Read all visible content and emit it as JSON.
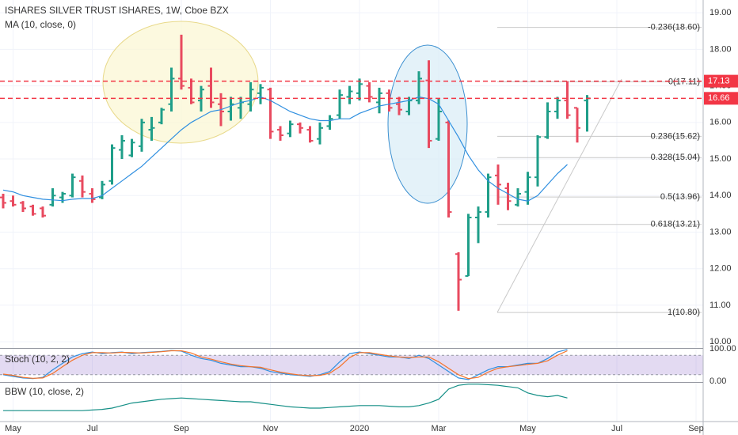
{
  "chart_data": [
    {
      "type": "ohlc",
      "title": "ISHARES SILVER TRUST ISHARES, 1W, Cboe BZX",
      "categories": [
        null,
        "May",
        null,
        null,
        null,
        null,
        null,
        null,
        null,
        "Jul",
        null,
        null,
        null,
        null,
        null,
        null,
        null,
        null,
        "Sep",
        null,
        null,
        null,
        null,
        null,
        null,
        null,
        null,
        "Nov",
        null,
        null,
        null,
        null,
        null,
        null,
        null,
        null,
        "2020",
        null,
        null,
        null,
        null,
        null,
        null,
        null,
        "Mar",
        null,
        null,
        null,
        null,
        null,
        null,
        null,
        null,
        "May",
        null,
        null,
        null,
        null,
        null,
        null,
        null,
        null,
        "Jul",
        null,
        null,
        null,
        null,
        null,
        null,
        null,
        "Sep"
      ],
      "open": [
        13.95,
        13.85,
        13.8,
        13.7,
        13.65,
        13.75,
        13.95,
        14.0,
        14.4,
        14.05,
        13.95,
        14.4,
        15.25,
        15.1,
        15.35,
        15.8,
        16.0,
        16.5,
        17.2,
        16.95,
        16.6,
        17.0,
        16.5,
        16.3,
        16.4,
        16.5,
        16.8,
        16.9,
        15.8,
        15.7,
        15.95,
        15.8,
        15.55,
        15.9,
        16.2,
        16.7,
        16.8,
        17.0,
        16.55,
        16.8,
        16.5,
        16.3,
        16.6,
        17.15,
        15.55,
        16.0,
        12.4,
        11.8,
        13.4,
        13.55,
        14.55,
        14.2,
        13.75,
        14.1,
        14.5,
        15.6,
        16.3,
        16.6,
        16.4,
        16.6,
        null,
        null,
        null,
        null,
        null,
        null,
        null,
        null,
        null,
        null,
        null
      ],
      "high": [
        14.05,
        14.0,
        13.85,
        13.75,
        13.7,
        14.2,
        14.1,
        14.6,
        14.55,
        14.2,
        14.4,
        15.4,
        15.65,
        15.55,
        16.1,
        16.15,
        16.4,
        17.5,
        18.4,
        17.2,
        17.0,
        17.5,
        16.8,
        16.7,
        16.7,
        17.1,
        17.05,
        16.95,
        15.9,
        16.05,
        16.0,
        15.9,
        16.0,
        16.2,
        16.9,
        17.0,
        17.2,
        17.1,
        16.95,
        16.9,
        16.7,
        16.7,
        17.4,
        17.7,
        16.65,
        16.05,
        12.45,
        13.5,
        13.7,
        14.6,
        14.85,
        14.35,
        14.2,
        14.65,
        15.65,
        16.55,
        16.7,
        17.13,
        16.4,
        16.75,
        null,
        null,
        null,
        null,
        null,
        null,
        null,
        null,
        null,
        null,
        null
      ],
      "low": [
        13.65,
        13.7,
        13.55,
        13.45,
        13.4,
        13.7,
        13.8,
        13.95,
        13.95,
        13.8,
        13.9,
        14.3,
        15.0,
        15.05,
        15.2,
        15.5,
        15.95,
        16.3,
        16.9,
        16.5,
        16.3,
        16.4,
        15.9,
        16.05,
        16.1,
        16.3,
        16.5,
        15.55,
        15.5,
        15.6,
        15.7,
        15.45,
        15.4,
        15.8,
        16.1,
        16.5,
        16.6,
        16.55,
        16.25,
        16.3,
        16.2,
        16.2,
        16.5,
        15.3,
        15.5,
        13.4,
        10.85,
        11.8,
        12.7,
        13.4,
        13.75,
        13.6,
        13.7,
        13.75,
        14.25,
        15.55,
        16.1,
        16.1,
        15.45,
        15.75,
        null,
        null,
        null,
        null,
        null,
        null,
        null,
        null,
        null,
        null,
        null
      ],
      "close": [
        13.8,
        13.75,
        13.65,
        13.5,
        13.45,
        14.0,
        14.05,
        14.5,
        14.1,
        13.9,
        14.3,
        15.3,
        15.5,
        15.45,
        16.0,
        15.85,
        16.35,
        17.2,
        17.0,
        16.55,
        16.9,
        16.55,
        16.3,
        16.5,
        16.55,
        16.9,
        16.95,
        15.75,
        15.65,
        15.95,
        15.85,
        15.5,
        15.85,
        16.1,
        16.75,
        16.85,
        17.05,
        16.7,
        16.8,
        16.4,
        16.35,
        16.6,
        17.2,
        15.5,
        16.3,
        13.55,
        11.7,
        13.4,
        13.55,
        14.5,
        14.3,
        13.85,
        14.05,
        14.5,
        15.6,
        16.3,
        16.6,
        16.2,
        15.85,
        16.66,
        null,
        null,
        null,
        null,
        null,
        null,
        null,
        null,
        null,
        null,
        null
      ],
      "up_color": "#1f9e89",
      "down_color": "#e84a5f",
      "series": [
        {
          "name": "MA (10, close, 0)",
          "color": "#2f8fe0",
          "values": [
            14.15,
            14.1,
            14.0,
            13.95,
            13.9,
            13.88,
            13.86,
            13.9,
            13.92,
            13.92,
            14.0,
            14.2,
            14.4,
            14.6,
            14.8,
            15.05,
            15.3,
            15.55,
            15.8,
            16.0,
            16.15,
            16.3,
            16.35,
            16.45,
            16.55,
            16.6,
            16.7,
            16.6,
            16.45,
            16.3,
            16.2,
            16.1,
            16.05,
            16.05,
            16.1,
            16.1,
            16.25,
            16.35,
            16.45,
            16.5,
            16.55,
            16.6,
            16.7,
            16.65,
            16.5,
            16.05,
            15.6,
            15.1,
            14.7,
            14.4,
            14.2,
            14.05,
            13.9,
            13.85,
            14.0,
            14.3,
            14.6,
            14.85,
            null,
            null,
            null,
            null,
            null,
            null,
            null,
            null,
            null,
            null,
            null,
            null,
            null
          ]
        }
      ],
      "price_lines": [
        {
          "value": 17.13,
          "color": "#f23645"
        },
        {
          "value": 16.66,
          "color": "#f23645"
        }
      ],
      "fib_levels": [
        {
          "value": 18.6,
          "label": "-0.236(18.60)"
        },
        {
          "value": 17.11,
          "label": "0(17.11)"
        },
        {
          "value": 15.62,
          "label": "0.236(15.62)"
        },
        {
          "value": 15.04,
          "label": "0.328(15.04)"
        },
        {
          "value": 13.96,
          "label": "0.5(13.96)"
        },
        {
          "value": 13.21,
          "label": "0.618(13.21)"
        },
        {
          "value": 10.8,
          "label": "1(10.80)"
        }
      ],
      "ylim": [
        9.83,
        19.35
      ],
      "yticks": [
        {
          "value": 10,
          "label": "10.00"
        },
        {
          "value": 11,
          "label": "11.00"
        },
        {
          "value": 12,
          "label": "12.00"
        },
        {
          "value": 13,
          "label": "13.00"
        },
        {
          "value": 14,
          "label": "14.00"
        },
        {
          "value": 15,
          "label": "15.00"
        },
        {
          "value": 16,
          "label": "16.00"
        },
        {
          "value": 17,
          "label": "17.00"
        },
        {
          "value": 18,
          "label": "18.00"
        },
        {
          "value": 19,
          "label": "19.00"
        }
      ],
      "grid": true
    },
    {
      "type": "line",
      "title": "Stoch (10, 2, 2)",
      "band": [
        20,
        80
      ],
      "series": [
        {
          "color": "#2f8fe0",
          "values": [
            20,
            15,
            10,
            8,
            12,
            35,
            55,
            75,
            85,
            90,
            85,
            88,
            90,
            85,
            88,
            90,
            92,
            95,
            93,
            80,
            70,
            65,
            55,
            50,
            45,
            45,
            40,
            30,
            25,
            20,
            18,
            15,
            20,
            30,
            60,
            85,
            90,
            85,
            80,
            75,
            75,
            70,
            80,
            70,
            50,
            30,
            10,
            5,
            20,
            35,
            45,
            45,
            50,
            55,
            55,
            70,
            90,
            98,
            null,
            null,
            null,
            null,
            null,
            null,
            null,
            null,
            null,
            null,
            null,
            null,
            null
          ]
        },
        {
          "color": "#f5732a",
          "values": [
            22,
            18,
            12,
            9,
            10,
            24,
            45,
            65,
            80,
            88,
            88,
            87,
            89,
            88,
            87,
            89,
            91,
            94,
            94,
            87,
            75,
            68,
            60,
            53,
            48,
            45,
            43,
            35,
            28,
            23,
            19,
            17,
            18,
            25,
            45,
            73,
            88,
            88,
            83,
            78,
            75,
            73,
            75,
            75,
            60,
            40,
            20,
            8,
            12,
            28,
            40,
            45,
            48,
            52,
            55,
            63,
            80,
            94,
            null,
            null,
            null,
            null,
            null,
            null,
            null,
            null,
            null,
            null,
            null,
            null,
            null
          ]
        }
      ],
      "ylim": [
        0,
        100
      ],
      "yticks": [
        {
          "value": 100,
          "label": "100.00"
        },
        {
          "value": 0,
          "label": "0.00"
        }
      ]
    },
    {
      "type": "line",
      "title": "BBW (10, close, 2)",
      "series": [
        {
          "color": "#148f86",
          "values": [
            0.08,
            0.08,
            0.08,
            0.08,
            0.08,
            0.08,
            0.08,
            0.08,
            0.08,
            0.085,
            0.09,
            0.1,
            0.12,
            0.14,
            0.15,
            0.16,
            0.17,
            0.175,
            0.18,
            0.175,
            0.17,
            0.165,
            0.16,
            0.155,
            0.15,
            0.15,
            0.14,
            0.13,
            0.12,
            0.11,
            0.105,
            0.1,
            0.1,
            0.105,
            0.11,
            0.115,
            0.12,
            0.12,
            0.12,
            0.115,
            0.11,
            0.11,
            0.12,
            0.14,
            0.17,
            0.25,
            0.28,
            0.29,
            0.29,
            0.285,
            0.28,
            0.27,
            0.26,
            0.22,
            0.2,
            0.19,
            0.2,
            0.18,
            null,
            null,
            null,
            null,
            null,
            null,
            null,
            null,
            null,
            null,
            null,
            null,
            null
          ]
        }
      ],
      "ylim": [
        0,
        0.3
      ]
    }
  ]
}
